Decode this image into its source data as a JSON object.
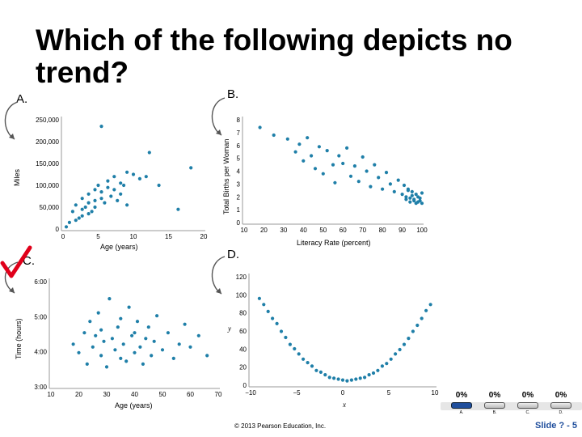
{
  "slide": {
    "title": "Which of the following depicts no trend?",
    "footer": "© 2013 Pearson Education, Inc.",
    "slide_number": "Slide ? - 5"
  },
  "options": {
    "a": "A.",
    "b": "B.",
    "c": "C.",
    "d": "D."
  },
  "answer": "C",
  "poll": {
    "percents": [
      "0%",
      "0%",
      "0%",
      "0%"
    ],
    "labels": [
      "A.",
      "B.",
      "C.",
      "D."
    ]
  },
  "charts": {
    "a": {
      "xlabel": "Age (years)",
      "ylabel": "Miles",
      "xticks": [
        "0",
        "5",
        "10",
        "15",
        "20"
      ],
      "yticks": [
        "0",
        "50,000",
        "100,000",
        "150,000",
        "200,000",
        "250,000"
      ]
    },
    "b": {
      "xlabel": "Literacy Rate (percent)",
      "ylabel": "Total Births per Woman",
      "xticks": [
        "10",
        "20",
        "30",
        "40",
        "50",
        "60",
        "70",
        "80",
        "90",
        "100"
      ],
      "yticks": [
        "0",
        "1",
        "2",
        "3",
        "4",
        "5",
        "6",
        "7",
        "8"
      ]
    },
    "c": {
      "xlabel": "Age (years)",
      "ylabel": "Time (hours)",
      "xticks": [
        "10",
        "20",
        "30",
        "40",
        "50",
        "60",
        "70"
      ],
      "yticks": [
        "3:00",
        "4:00",
        "5:00",
        "6:00"
      ]
    },
    "d": {
      "xlabel": "x",
      "ylabel": "y",
      "xticks": [
        "−10",
        "−5",
        "0",
        "5",
        "10"
      ],
      "yticks": [
        "0",
        "20",
        "40",
        "60",
        "80",
        "100",
        "120"
      ]
    }
  },
  "chart_data": [
    {
      "type": "scatter",
      "xlabel": "Age (years)",
      "ylabel": "Miles",
      "xlim": [
        0,
        22
      ],
      "ylim": [
        0,
        250000
      ],
      "x": [
        0.5,
        1,
        1.5,
        2,
        2,
        2.5,
        3,
        3,
        3,
        3.5,
        4,
        4,
        4,
        4.5,
        5,
        5,
        5,
        5.5,
        6,
        6,
        6.5,
        7,
        7,
        7.5,
        8,
        8,
        8.5,
        9,
        9,
        9.5,
        10,
        10,
        11,
        12,
        13,
        13.5,
        15,
        18,
        20,
        6
      ],
      "y": [
        5000,
        15000,
        40000,
        20000,
        55000,
        25000,
        30000,
        45000,
        70000,
        50000,
        35000,
        60000,
        80000,
        40000,
        65000,
        90000,
        50000,
        100000,
        70000,
        85000,
        60000,
        95000,
        110000,
        75000,
        120000,
        90000,
        65000,
        105000,
        80000,
        100000,
        130000,
        55000,
        125000,
        115000,
        120000,
        175000,
        100000,
        45000,
        140000,
        235000
      ]
    },
    {
      "type": "scatter",
      "xlabel": "Literacy Rate (percent)",
      "ylabel": "Total Births per Woman",
      "xlim": [
        10,
        100
      ],
      "ylim": [
        0,
        8
      ],
      "x": [
        18,
        25,
        32,
        36,
        38,
        40,
        42,
        44,
        46,
        48,
        50,
        52,
        55,
        56,
        58,
        60,
        62,
        64,
        66,
        68,
        70,
        72,
        74,
        76,
        78,
        80,
        82,
        84,
        86,
        88,
        90,
        91,
        92,
        93,
        94,
        95,
        96,
        97,
        98,
        99,
        100,
        100,
        99,
        98,
        97,
        96,
        95,
        94,
        93,
        92
      ],
      "y": [
        7.4,
        6.8,
        6.5,
        5.5,
        6.1,
        4.8,
        6.6,
        5.2,
        4.2,
        5.9,
        3.8,
        5.6,
        4.5,
        3.1,
        5.2,
        4.6,
        5.8,
        3.6,
        4.4,
        3.2,
        5.1,
        4.0,
        2.8,
        4.5,
        3.5,
        2.6,
        3.9,
        3.0,
        2.4,
        3.3,
        2.2,
        2.9,
        2.0,
        2.6,
        1.9,
        2.4,
        1.7,
        2.2,
        1.6,
        1.9,
        1.5,
        2.3,
        1.7,
        2.0,
        1.5,
        1.8,
        2.1,
        1.6,
        2.5,
        1.8
      ]
    },
    {
      "type": "scatter",
      "xlabel": "Age (years)",
      "ylabel": "Time (hours)",
      "xlim": [
        10,
        70
      ],
      "ylim": [
        2.5,
        6.2
      ],
      "x": [
        18,
        20,
        22,
        23,
        24,
        25,
        26,
        27,
        28,
        28,
        29,
        30,
        31,
        32,
        33,
        34,
        35,
        35,
        36,
        37,
        38,
        39,
        40,
        40,
        41,
        42,
        43,
        44,
        45,
        46,
        47,
        48,
        50,
        52,
        54,
        56,
        58,
        60,
        63,
        66
      ],
      "y": [
        4.0,
        3.7,
        4.4,
        3.3,
        4.8,
        3.9,
        4.3,
        5.1,
        3.6,
        4.5,
        4.1,
        3.2,
        5.6,
        4.2,
        3.8,
        4.6,
        3.5,
        4.9,
        4.0,
        3.4,
        5.3,
        4.3,
        3.7,
        4.4,
        4.8,
        3.9,
        3.3,
        4.2,
        4.6,
        3.6,
        4.1,
        5.0,
        3.8,
        4.4,
        3.5,
        4.0,
        4.7,
        3.9,
        4.3,
        3.6
      ]
    },
    {
      "type": "scatter",
      "xlabel": "x",
      "ylabel": "y",
      "xlim": [
        -11,
        10
      ],
      "ylim": [
        -5,
        120
      ],
      "x": [
        -10,
        -9.5,
        -9,
        -8.5,
        -8,
        -7.5,
        -7,
        -6.5,
        -6,
        -5.5,
        -5,
        -4.5,
        -4,
        -3.5,
        -3,
        -2.5,
        -2,
        -1.5,
        -1,
        -0.5,
        0,
        0.5,
        1,
        1.5,
        2,
        2.5,
        3,
        3.5,
        4,
        4.5,
        5,
        5.5,
        6,
        6.5,
        7,
        7.5,
        8,
        8.5,
        9,
        9.5
      ],
      "y": [
        95,
        88,
        80,
        72,
        66,
        57,
        50,
        42,
        37,
        31,
        25,
        21,
        17,
        12,
        10,
        7,
        4,
        3,
        2,
        1,
        0,
        1,
        2,
        3,
        4,
        7,
        9,
        12,
        17,
        20,
        25,
        31,
        36,
        42,
        49,
        57,
        64,
        72,
        81,
        88
      ]
    }
  ]
}
